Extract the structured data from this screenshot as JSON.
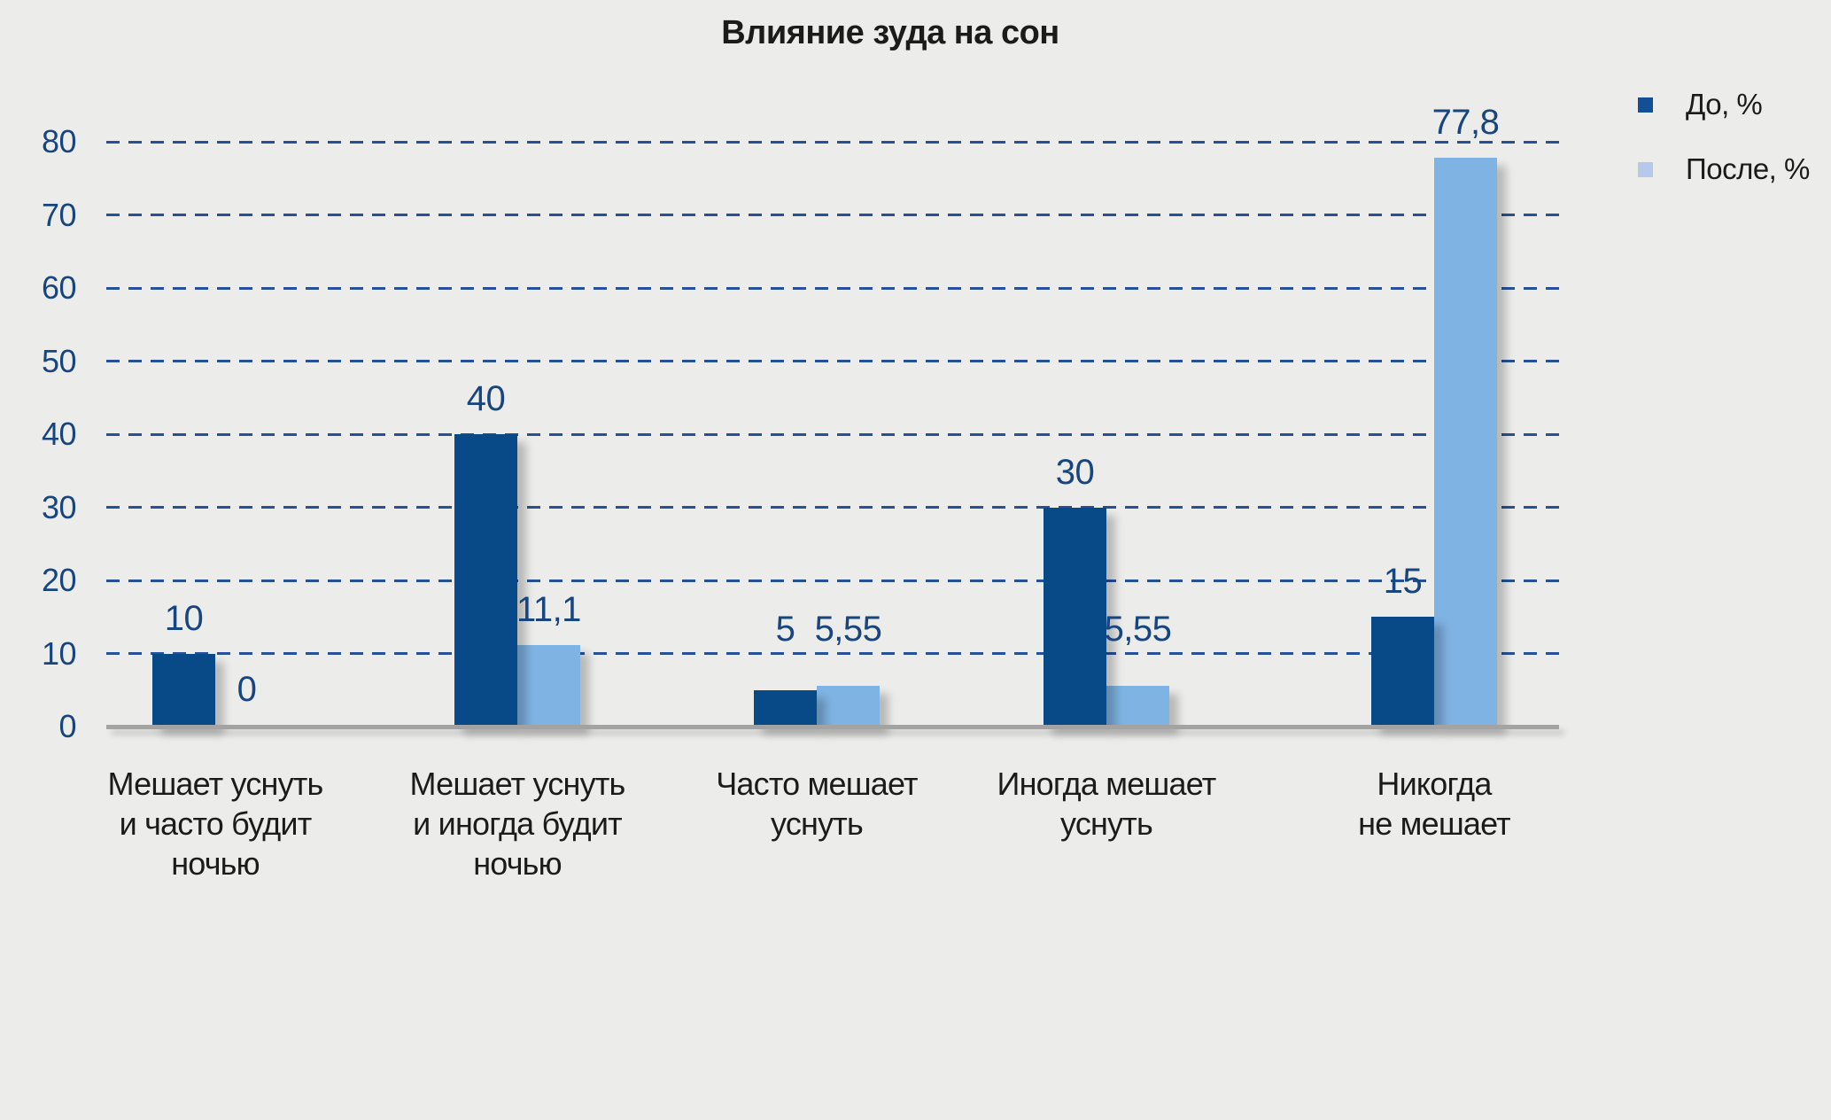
{
  "background_color": "#ECECEB",
  "chart_data": {
    "type": "bar",
    "title": "Влияние зуда на сон",
    "categories": [
      "Мешает уснуть\nи часто будит\nночью",
      "Мешает уснуть\nи иногда будит\nночью",
      "Часто мешает\nуснуть",
      "Иногда мешает\nуснуть",
      "Никогда\nне мешает"
    ],
    "series": [
      {
        "key": "before",
        "name": "До, %",
        "values": [
          10,
          40,
          5,
          30,
          15
        ],
        "labels": [
          "10",
          "40",
          "5",
          "30",
          "15"
        ],
        "bar_color": "#084A87",
        "swatch_color": "#134E96"
      },
      {
        "key": "after",
        "name": "После, %",
        "values": [
          0,
          11.1,
          5.55,
          5.55,
          77.8
        ],
        "labels": [
          "0",
          "11,1",
          "5,55",
          "5,55",
          "77,8"
        ],
        "bar_color": "#7FB3E3",
        "swatch_color": "#B6C8EB"
      }
    ],
    "y_ticks": [
      0,
      10,
      20,
      30,
      40,
      50,
      60,
      70,
      80
    ],
    "ylim": [
      0,
      80
    ],
    "grid": {
      "style": "dashed",
      "orientation": "horizontal",
      "lines_at": [
        10,
        20,
        30,
        40,
        50,
        60,
        70,
        80
      ],
      "color": "#27509B"
    },
    "legend_position": "top-right",
    "value_label_color": "#17457F",
    "tick_label_color": "#17457F",
    "axis_line_color": "#A3A3A3",
    "text_color": "#1B1B1B"
  }
}
